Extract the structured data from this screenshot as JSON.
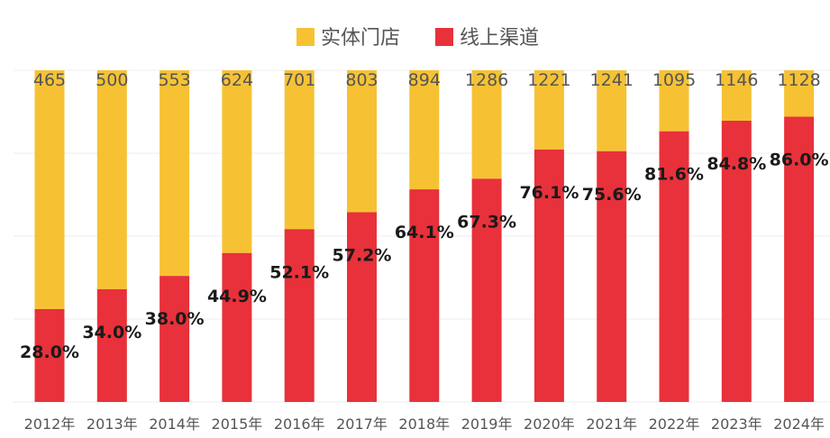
{
  "chart_data": {
    "type": "bar",
    "stacked": true,
    "normalized": true,
    "categories": [
      "2012年",
      "2013年",
      "2014年",
      "2015年",
      "2016年",
      "2017年",
      "2018年",
      "2019年",
      "2020年",
      "2021年",
      "2022年",
      "2023年",
      "2024年"
    ],
    "totals": [
      "465",
      "500",
      "553",
      "624",
      "701",
      "803",
      "894",
      "1286",
      "1221",
      "1241",
      "1095",
      "1146",
      "1128"
    ],
    "series": [
      {
        "name": "实体门店",
        "color": "#F6C234",
        "values": [
          72.0,
          66.0,
          62.0,
          55.1,
          47.9,
          42.8,
          35.9,
          32.7,
          23.9,
          24.4,
          18.4,
          15.2,
          14.0
        ]
      },
      {
        "name": "线上渠道",
        "color": "#E8313A",
        "values": [
          28.0,
          34.0,
          38.0,
          44.9,
          52.1,
          57.2,
          64.1,
          67.3,
          76.1,
          75.6,
          81.6,
          84.8,
          86.0
        ],
        "labels": [
          "28.0%",
          "34.0%",
          "38.0%",
          "44.9%",
          "52.1%",
          "57.2%",
          "64.1%",
          "67.3%",
          "76.1%",
          "75.6%",
          "81.6%",
          "84.8%",
          "86.0%"
        ]
      }
    ],
    "ylim": [
      0,
      100
    ],
    "grid": true,
    "legend": "top-center",
    "title": "",
    "xlabel": "",
    "ylabel": ""
  }
}
